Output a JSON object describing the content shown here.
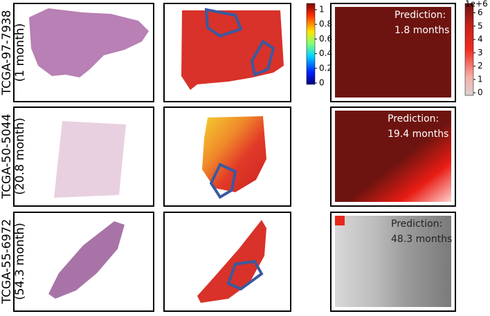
{
  "rows": [
    {
      "id": "TCGA-97-7938",
      "survival": "(1 month)",
      "prediction_label": "Prediction:",
      "prediction": "1.8 months"
    },
    {
      "id": "TCGA-50-5044",
      "survival": "(20.8 month)",
      "prediction_label": "Prediction:",
      "prediction": "19.4 months"
    },
    {
      "id": "TCGA-55-6972",
      "survival": "(54.3 month)",
      "prediction_label": "Prediction:",
      "prediction": "48.3 months"
    }
  ],
  "attention_colorbar": {
    "ticks": [
      0,
      0.2,
      0.4,
      0.6,
      0.8,
      1
    ],
    "range": [
      0,
      1
    ]
  },
  "prediction_colorbar": {
    "ticks": [
      0,
      1,
      2,
      3,
      4,
      5,
      6
    ],
    "range": [
      -0.2,
      6.7
    ],
    "scale_label": "1e+6"
  }
}
